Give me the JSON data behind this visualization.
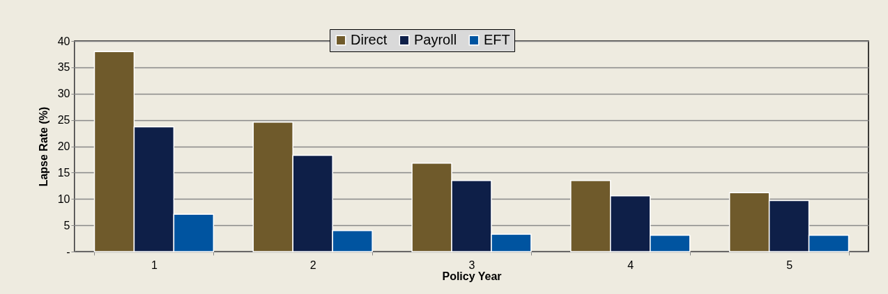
{
  "chart_data": {
    "type": "bar",
    "xlabel": "Policy Year",
    "ylabel": "Lapse Rate (%)",
    "categories": [
      "1",
      "2",
      "3",
      "4",
      "5"
    ],
    "series": [
      {
        "name": "Direct",
        "color": "#6f5a2b",
        "values": [
          38.0,
          24.6,
          16.8,
          13.5,
          11.2
        ]
      },
      {
        "name": "Payroll",
        "color": "#0e1f48",
        "values": [
          23.7,
          18.3,
          13.5,
          10.6,
          9.7
        ]
      },
      {
        "name": "EFT",
        "color": "#0054a0",
        "values": [
          7.1,
          4.0,
          3.3,
          3.1,
          3.1
        ]
      }
    ],
    "ylim": [
      0,
      40
    ],
    "yticks": [
      {
        "value": 0,
        "label": "-"
      },
      5,
      10,
      15,
      20,
      25,
      30,
      35,
      40
    ],
    "grid": "y",
    "legend": "top"
  }
}
